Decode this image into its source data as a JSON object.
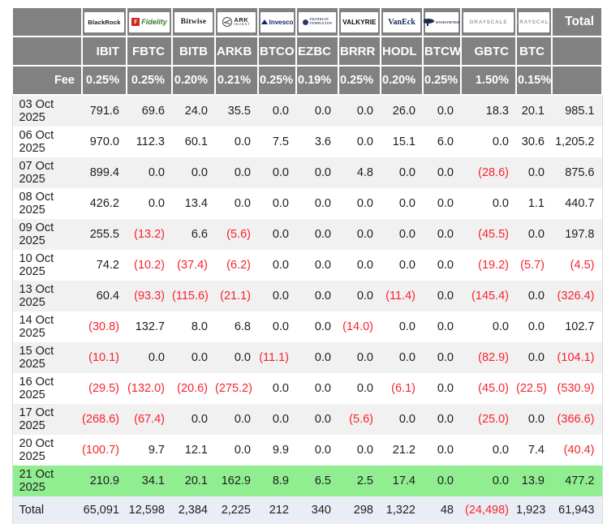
{
  "colors": {
    "header_bg": "#818181",
    "header_text": "#ffffff",
    "row_alt_bg": "#f1f1f1",
    "row_bg": "#ffffff",
    "highlight_row_bg": "#90ee90",
    "total_row_bg": "#e9edf6",
    "negative_text": "#f8232e",
    "body_text": "#1d1d1f",
    "fidelity_red": "#cf2620",
    "fidelity_green": "#3f7a2e",
    "vaneck_navy": "#16295c",
    "invesco_navy": "#12266b",
    "grayscale_gray": "#9b9b9b"
  },
  "chart_data": {
    "type": "table",
    "fee_label": "Fee",
    "total_label": "Total",
    "columns": [
      {
        "ticker": "IBIT",
        "fee": "0.25%",
        "provider": "BlackRock",
        "brand": "blackrock"
      },
      {
        "ticker": "FBTC",
        "fee": "0.25%",
        "provider": "Fidelity",
        "brand": "fidelity"
      },
      {
        "ticker": "BITB",
        "fee": "0.20%",
        "provider": "Bitwise",
        "brand": "bitwise"
      },
      {
        "ticker": "ARKB",
        "fee": "0.21%",
        "provider": "ARK INVEST",
        "brand": "ark"
      },
      {
        "ticker": "BTCO",
        "fee": "0.25%",
        "provider": "Invesco",
        "brand": "invesco"
      },
      {
        "ticker": "EZBC",
        "fee": "0.19%",
        "provider": "FRANKLIN TEMPLETON",
        "brand": "franklin"
      },
      {
        "ticker": "BRRR",
        "fee": "0.25%",
        "provider": "VALKYRIE",
        "brand": "valkyrie"
      },
      {
        "ticker": "HODL",
        "fee": "0.20%",
        "provider": "VanEck",
        "brand": "vaneck"
      },
      {
        "ticker": "BTCW",
        "fee": "0.25%",
        "provider": "WISDOMTREE",
        "brand": "wisdomtree"
      },
      {
        "ticker": "GBTC",
        "fee": "1.50%",
        "provider": "GRAYSCALE",
        "brand": "grayscale"
      },
      {
        "ticker": "BTC",
        "fee": "0.15%",
        "provider": "GRAYSCALE",
        "brand": "grayscale"
      }
    ],
    "rows": [
      {
        "date": "03 Oct 2025",
        "highlight": false,
        "values": [
          "791.6",
          "69.6",
          "24.0",
          "35.5",
          "0.0",
          "0.0",
          "0.0",
          "26.0",
          "0.0",
          "18.3",
          "20.1",
          "985.1"
        ]
      },
      {
        "date": "06 Oct 2025",
        "highlight": false,
        "values": [
          "970.0",
          "112.3",
          "60.1",
          "0.0",
          "7.5",
          "3.6",
          "0.0",
          "15.1",
          "6.0",
          "0.0",
          "30.6",
          "1,205.2"
        ]
      },
      {
        "date": "07 Oct 2025",
        "highlight": false,
        "values": [
          "899.4",
          "0.0",
          "0.0",
          "0.0",
          "0.0",
          "0.0",
          "4.8",
          "0.0",
          "0.0",
          "(28.6)",
          "0.0",
          "875.6"
        ]
      },
      {
        "date": "08 Oct 2025",
        "highlight": false,
        "values": [
          "426.2",
          "0.0",
          "13.4",
          "0.0",
          "0.0",
          "0.0",
          "0.0",
          "0.0",
          "0.0",
          "0.0",
          "1.1",
          "440.7"
        ]
      },
      {
        "date": "09 Oct 2025",
        "highlight": false,
        "values": [
          "255.5",
          "(13.2)",
          "6.6",
          "(5.6)",
          "0.0",
          "0.0",
          "0.0",
          "0.0",
          "0.0",
          "(45.5)",
          "0.0",
          "197.8"
        ]
      },
      {
        "date": "10 Oct 2025",
        "highlight": false,
        "values": [
          "74.2",
          "(10.2)",
          "(37.4)",
          "(6.2)",
          "0.0",
          "0.0",
          "0.0",
          "0.0",
          "0.0",
          "(19.2)",
          "(5.7)",
          "(4.5)"
        ]
      },
      {
        "date": "13 Oct 2025",
        "highlight": false,
        "values": [
          "60.4",
          "(93.3)",
          "(115.6)",
          "(21.1)",
          "0.0",
          "0.0",
          "0.0",
          "(11.4)",
          "0.0",
          "(145.4)",
          "0.0",
          "(326.4)"
        ]
      },
      {
        "date": "14 Oct 2025",
        "highlight": false,
        "values": [
          "(30.8)",
          "132.7",
          "8.0",
          "6.8",
          "0.0",
          "0.0",
          "(14.0)",
          "0.0",
          "0.0",
          "0.0",
          "0.0",
          "102.7"
        ]
      },
      {
        "date": "15 Oct 2025",
        "highlight": false,
        "values": [
          "(10.1)",
          "0.0",
          "0.0",
          "0.0",
          "(11.1)",
          "0.0",
          "0.0",
          "0.0",
          "0.0",
          "(82.9)",
          "0.0",
          "(104.1)"
        ]
      },
      {
        "date": "16 Oct 2025",
        "highlight": false,
        "values": [
          "(29.5)",
          "(132.0)",
          "(20.6)",
          "(275.2)",
          "0.0",
          "0.0",
          "0.0",
          "(6.1)",
          "0.0",
          "(45.0)",
          "(22.5)",
          "(530.9)"
        ]
      },
      {
        "date": "17 Oct 2025",
        "highlight": false,
        "values": [
          "(268.6)",
          "(67.4)",
          "0.0",
          "0.0",
          "0.0",
          "0.0",
          "(5.6)",
          "0.0",
          "0.0",
          "(25.0)",
          "0.0",
          "(366.6)"
        ]
      },
      {
        "date": "20 Oct 2025",
        "highlight": false,
        "values": [
          "(100.7)",
          "9.7",
          "12.1",
          "0.0",
          "9.9",
          "0.0",
          "0.0",
          "21.2",
          "0.0",
          "0.0",
          "7.4",
          "(40.4)"
        ]
      },
      {
        "date": "21 Oct 2025",
        "highlight": true,
        "values": [
          "210.9",
          "34.1",
          "20.1",
          "162.9",
          "8.9",
          "6.5",
          "2.5",
          "17.4",
          "0.0",
          "0.0",
          "13.9",
          "477.2"
        ]
      }
    ],
    "total_row": {
      "label": "Total",
      "values": [
        "65,091",
        "12,598",
        "2,384",
        "2,225",
        "212",
        "340",
        "298",
        "1,322",
        "48",
        "(24,498)",
        "1,923",
        "61,943"
      ]
    }
  }
}
